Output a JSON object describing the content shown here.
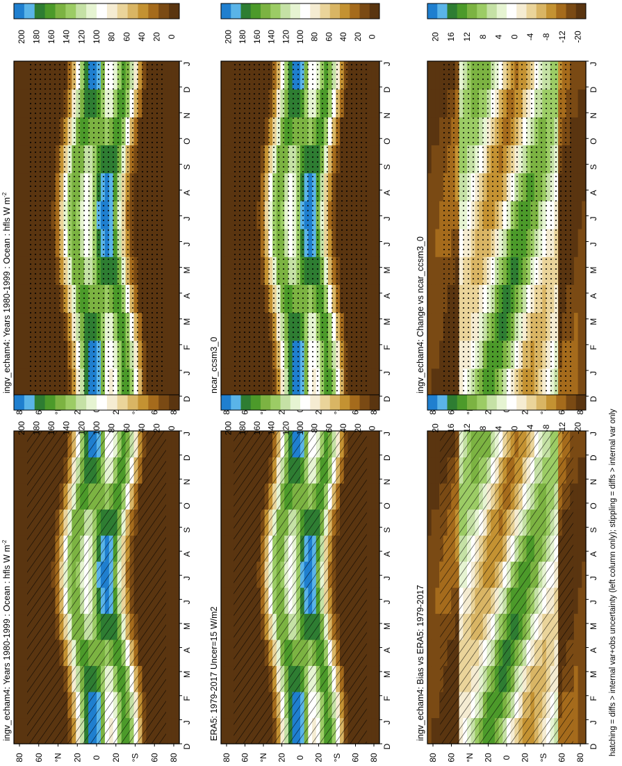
{
  "chart_data": [
    {
      "type": "heatmap",
      "title": "ingv_echam4: Years 1980-1999 : Ocean : hfls W m",
      "title_superscript": "-2",
      "x_months": [
        "D",
        "J",
        "F",
        "M",
        "A",
        "M",
        "J",
        "J",
        "A",
        "S",
        "O",
        "N",
        "D",
        "J"
      ],
      "y_ticks": [
        "80",
        "60",
        "°N",
        "20",
        "0",
        "20",
        "°S",
        "60",
        "80"
      ],
      "colorbar_labels": [
        "200",
        "180",
        "160",
        "140",
        "120",
        "100",
        "80",
        "60",
        "40",
        "20",
        "0"
      ]
    },
    {
      "type": "heatmap",
      "title": "ERA5: 1979-2017 Uncer=15 W/m2",
      "x_months": [
        "D",
        "J",
        "F",
        "M",
        "A",
        "M",
        "J",
        "J",
        "A",
        "S",
        "O",
        "N",
        "D",
        "J"
      ],
      "y_ticks": [
        "80",
        "60",
        "°N",
        "20",
        "0",
        "20",
        "°S",
        "60",
        "80"
      ],
      "colorbar_labels": [
        "200",
        "180",
        "160",
        "140",
        "120",
        "100",
        "80",
        "60",
        "40",
        "20",
        "0"
      ]
    },
    {
      "type": "heatmap",
      "title": "ingv_echam4: Bias vs ERA5: 1979-2017",
      "x_months": [
        "D",
        "J",
        "F",
        "M",
        "A",
        "M",
        "J",
        "J",
        "A",
        "S",
        "O",
        "N",
        "D",
        "J"
      ],
      "y_ticks": [
        "80",
        "60",
        "°N",
        "20",
        "0",
        "20",
        "°S",
        "60",
        "80"
      ],
      "colorbar_labels": [
        "20",
        "16",
        "12",
        "8",
        "4",
        "0",
        "-4",
        "-8",
        "-12",
        "-20"
      ]
    },
    {
      "type": "heatmap",
      "title": "ingv_echam4: Years 1980-1999 : Ocean : hfls W m",
      "title_superscript": "-2",
      "x_months": [
        "D",
        "J",
        "F",
        "M",
        "A",
        "M",
        "J",
        "J",
        "A",
        "S",
        "O",
        "N",
        "D",
        "J"
      ],
      "y_ticks": [
        "80",
        "60",
        "°N",
        "20",
        "0",
        "20",
        "°S",
        "60",
        "80"
      ],
      "colorbar_labels": [
        "200",
        "180",
        "160",
        "140",
        "120",
        "100",
        "80",
        "60",
        "40",
        "20",
        "0"
      ]
    },
    {
      "type": "heatmap",
      "title": "ncar_ccsm3_0",
      "x_months": [
        "D",
        "J",
        "F",
        "M",
        "A",
        "M",
        "J",
        "J",
        "A",
        "S",
        "O",
        "N",
        "D",
        "J"
      ],
      "y_ticks": [
        "80",
        "60",
        "°N",
        "20",
        "0",
        "20",
        "°S",
        "60",
        "80"
      ],
      "colorbar_labels": [
        "200",
        "180",
        "160",
        "140",
        "120",
        "100",
        "80",
        "60",
        "40",
        "20",
        "0"
      ]
    },
    {
      "type": "heatmap",
      "title": "ingv_echam4: Change vs ncar_ccsm3_0",
      "x_months": [
        "D",
        "J",
        "F",
        "M",
        "A",
        "M",
        "J",
        "J",
        "A",
        "S",
        "O",
        "N",
        "D",
        "J"
      ],
      "y_ticks": [
        "80",
        "60",
        "°N",
        "20",
        "0",
        "20",
        "°S",
        "60",
        "80"
      ],
      "colorbar_labels": [
        "20",
        "16",
        "12",
        "8",
        "4",
        "0",
        "-4",
        "-8",
        "-12",
        "-20"
      ]
    }
  ],
  "colors": {
    "palette": [
      "#1f7fcf",
      "#5ab4e8",
      "#2e7d32",
      "#4c9a2a",
      "#7cb342",
      "#9ccc65",
      "#c5e1a5",
      "#e6f4d2",
      "#ffffff",
      "#f5ecd2",
      "#ead49a",
      "#d9b564",
      "#c49232",
      "#a56b1c",
      "#7a4a14",
      "#5a3510"
    ]
  },
  "footnote": "hatching = diffs > internal var+obs uncertainty (left column only); stippling = diffs > internal var only"
}
